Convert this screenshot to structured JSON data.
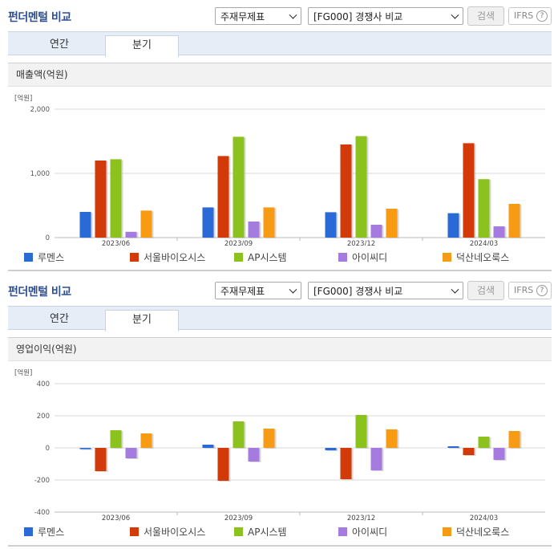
{
  "panels": [
    {
      "header": {
        "title": "펀더멘털 비교",
        "select_1": "주재무제표",
        "select_2": "[FG000] 경쟁사 비교",
        "search_label": "검색",
        "ifrs_label": "IFRS",
        "help_glyph": "?"
      },
      "tabs": [
        {
          "label": "연간",
          "active": false
        },
        {
          "label": "분기",
          "active": true
        }
      ],
      "section_title": "매출액(억원)"
    },
    {
      "header": {
        "title": "펀더멘털 비교",
        "select_1": "주재무제표",
        "select_2": "[FG000] 경쟁사 비교",
        "search_label": "검색",
        "ifrs_label": "IFRS",
        "help_glyph": "?"
      },
      "tabs": [
        {
          "label": "연간",
          "active": false
        },
        {
          "label": "분기",
          "active": true
        }
      ],
      "section_title": "영업이익(억원)"
    }
  ],
  "chart_data": [
    {
      "type": "bar",
      "unit_label": "[억원]",
      "categories": [
        "2023/06",
        "2023/09",
        "2023/12",
        "2024/03"
      ],
      "ylim": [
        0,
        2000
      ],
      "yticks": [
        0,
        1000,
        2000
      ],
      "ytick_labels": [
        "0",
        "1,000",
        "2,000"
      ],
      "grid": true,
      "legend": "bottom",
      "series": [
        {
          "name": "루멘스",
          "color": "#2a6ad6",
          "values": [
            400,
            470,
            395,
            380
          ]
        },
        {
          "name": "서울바이오시스",
          "color": "#d23a0a",
          "values": [
            1200,
            1270,
            1450,
            1470
          ]
        },
        {
          "name": "AP시스템",
          "color": "#8cc21e",
          "values": [
            1220,
            1570,
            1580,
            910
          ]
        },
        {
          "name": "아이씨디",
          "color": "#a57be0",
          "values": [
            90,
            250,
            200,
            175
          ]
        },
        {
          "name": "덕산네오룩스",
          "color": "#f79a14",
          "values": [
            420,
            470,
            450,
            525
          ]
        }
      ]
    },
    {
      "type": "bar",
      "unit_label": "[억원]",
      "categories": [
        "2023/06",
        "2023/09",
        "2023/12",
        "2024/03"
      ],
      "ylim": [
        -400,
        400
      ],
      "yticks": [
        -400,
        -200,
        0,
        200,
        400
      ],
      "ytick_labels": [
        "-400",
        "-200",
        "0",
        "200",
        "400"
      ],
      "grid": true,
      "legend": "bottom",
      "series": [
        {
          "name": "루멘스",
          "color": "#2a6ad6",
          "values": [
            -8,
            20,
            -15,
            10
          ]
        },
        {
          "name": "서울바이오시스",
          "color": "#d23a0a",
          "values": [
            -145,
            -205,
            -195,
            -45
          ]
        },
        {
          "name": "AP시스템",
          "color": "#8cc21e",
          "values": [
            110,
            165,
            205,
            70
          ]
        },
        {
          "name": "아이씨디",
          "color": "#a57be0",
          "values": [
            -65,
            -85,
            -140,
            -75
          ]
        },
        {
          "name": "덕산네오룩스",
          "color": "#f79a14",
          "values": [
            90,
            120,
            115,
            105
          ]
        }
      ]
    }
  ]
}
